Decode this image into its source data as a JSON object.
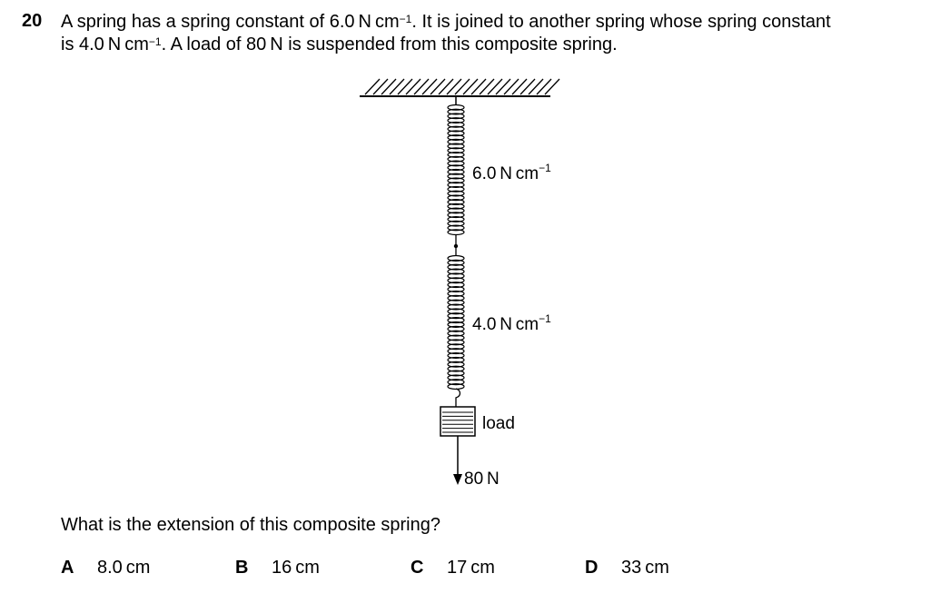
{
  "question": {
    "number": "20",
    "line1_a": "A spring has a spring constant of 6.0 N cm",
    "line1_sup": "−1",
    "line1_b": ". It is joined to another spring whose spring constant",
    "line2_a": "is 4.0 N cm",
    "line2_sup": "−1",
    "line2_b": ". A load of 80 N is suspended from this composite spring.",
    "prompt": "What is the extension of this composite spring?"
  },
  "diagram": {
    "spring_top_label": "6.0 N cm",
    "spring_top_sup": "−1",
    "spring_bottom_label": "4.0 N cm",
    "spring_bottom_sup": "−1",
    "load_label": "load",
    "force_label": "80 N"
  },
  "options": [
    {
      "letter": "A",
      "text": "8.0 cm"
    },
    {
      "letter": "B",
      "text": "16 cm"
    },
    {
      "letter": "C",
      "text": "17 cm"
    },
    {
      "letter": "D",
      "text": "33 cm"
    }
  ]
}
